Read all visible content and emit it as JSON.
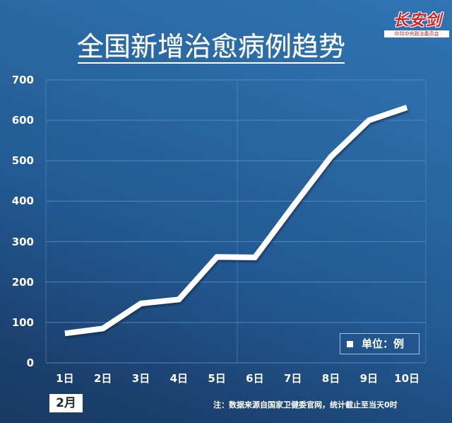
{
  "header": {
    "title": "全国新增治愈病例趋势"
  },
  "logo": {
    "main": "长安剑",
    "sub": "中共中央政法委员会",
    "color": "#d61d22"
  },
  "legend": {
    "label": "单位：例"
  },
  "month_label": "2月",
  "footnote": "注：数据来源自国家卫健委官网，统计截止至当天0时",
  "colors": {
    "background_top": "#2f74b4",
    "background_bottom": "#183a63",
    "line": "#ffffff",
    "grid": "#5f8fc0"
  },
  "chart_data": {
    "type": "line",
    "title": "全国新增治愈病例趋势",
    "xlabel": "2月",
    "ylabel": "",
    "unit": "单位：例",
    "categories": [
      "1日",
      "2日",
      "3日",
      "4日",
      "5日",
      "6日",
      "7日",
      "8日",
      "9日",
      "10日"
    ],
    "series": [
      {
        "name": "新增治愈病例",
        "values": [
          73,
          85,
          147,
          157,
          262,
          261,
          387,
          510,
          600,
          632
        ]
      }
    ],
    "ylim": [
      0,
      700
    ],
    "yticks": [
      0,
      100,
      200,
      300,
      400,
      500,
      600,
      700
    ],
    "grid": true,
    "legend_position": "bottom-right",
    "annotations": [
      "注：数据来源自国家卫健委官网，统计截止至当天0时"
    ]
  }
}
